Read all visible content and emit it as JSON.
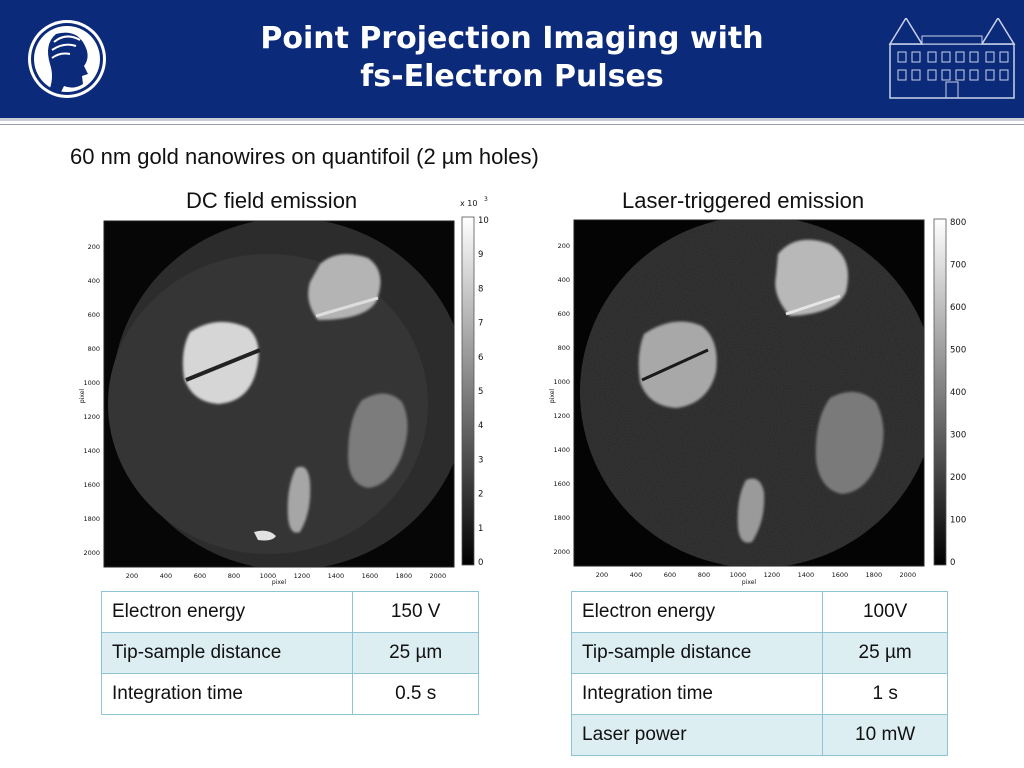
{
  "header": {
    "title_line1": "Point Projection Imaging with",
    "title_line2": "fs-Electron Pulses",
    "colors": {
      "bar": "#0c2a7a",
      "text": "#ffffff"
    },
    "left_logo_icon": "minerva-head-logo",
    "right_logo_icon": "castle-building-logo"
  },
  "subtitle": "60 nm gold nanowires on quantifoil (2 µm holes)",
  "panels": [
    {
      "label": "DC field emission",
      "colorbar_exponent": "x 10",
      "colorbar_exponent_power": "3",
      "colorbar_ticks": [
        "0",
        "1",
        "2",
        "3",
        "4",
        "5",
        "6",
        "7",
        "8",
        "9",
        "10"
      ],
      "x_ticks": [
        "200",
        "400",
        "600",
        "800",
        "1000",
        "1200",
        "1400",
        "1600",
        "1800",
        "2000"
      ],
      "y_ticks": [
        "200",
        "400",
        "600",
        "800",
        "1000",
        "1200",
        "1400",
        "1600",
        "1800",
        "2000"
      ],
      "x_label": "pixel",
      "y_label": "pixel",
      "table": [
        {
          "name": "Electron energy",
          "value": "150 V"
        },
        {
          "name": "Tip-sample distance",
          "value": "25 µm"
        },
        {
          "name": "Integration time",
          "value": "0.5 s"
        }
      ]
    },
    {
      "label": "Laser-triggered emission",
      "colorbar_ticks": [
        "0",
        "100",
        "200",
        "300",
        "400",
        "500",
        "600",
        "700",
        "800"
      ],
      "x_ticks": [
        "200",
        "400",
        "600",
        "800",
        "1000",
        "1200",
        "1400",
        "1600",
        "1800",
        "2000"
      ],
      "y_ticks": [
        "200",
        "400",
        "600",
        "800",
        "1000",
        "1200",
        "1400",
        "1600",
        "1800",
        "2000"
      ],
      "x_label": "pixel",
      "y_label": "pixel",
      "table": [
        {
          "name": "Electron energy",
          "value": "100V"
        },
        {
          "name": "Tip-sample distance",
          "value": "25 µm"
        },
        {
          "name": "Integration time",
          "value": "1 s"
        },
        {
          "name": "Laser power",
          "value": "10 mW"
        }
      ]
    }
  ]
}
